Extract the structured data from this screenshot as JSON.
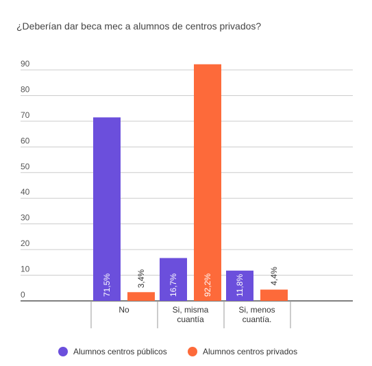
{
  "chart_data": {
    "type": "bar",
    "title": "¿Deberían dar beca mec a alumnos de centros privados?",
    "xlabel": "",
    "ylabel": "",
    "ylim": [
      0,
      90
    ],
    "yticks": [
      0,
      10,
      20,
      30,
      40,
      50,
      60,
      70,
      80,
      90
    ],
    "grid": true,
    "legend_position": "bottom",
    "categories": [
      [
        "No"
      ],
      [
        "Si, misma",
        "cuantía"
      ],
      [
        "Si, menos",
        "cuantía."
      ]
    ],
    "series": [
      {
        "name": "Alumnos centros públicos",
        "color": "#6b4fdc",
        "values": [
          71.5,
          16.7,
          11.8
        ],
        "labels": [
          "71,5%",
          "16,7%",
          "11,8%"
        ]
      },
      {
        "name": "Alumnos centros privados",
        "color": "#fd6a3a",
        "values": [
          3.4,
          92.2,
          4.4
        ],
        "labels": [
          "3,4%",
          "92,2%",
          "4,4%"
        ]
      }
    ]
  }
}
